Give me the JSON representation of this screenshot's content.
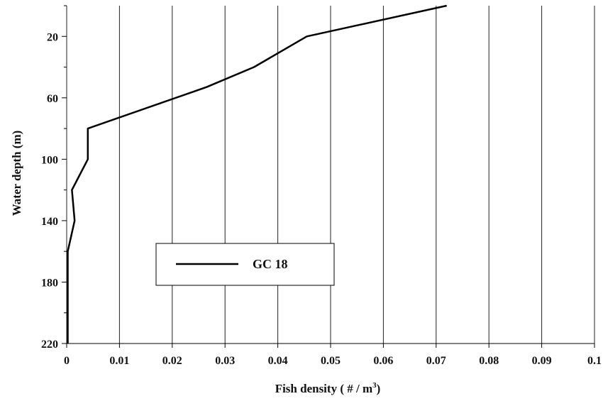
{
  "chart_data": {
    "type": "line",
    "title": "",
    "xlabel": {
      "main": "Fish density ( # / m",
      "sup": "3",
      "tail": ")"
    },
    "ylabel": "Water depth (m)",
    "xlim": [
      0,
      0.1
    ],
    "ylim": [
      220,
      0
    ],
    "y_inverted": true,
    "grid": "vertical",
    "x_ticks": [
      0,
      0.01,
      0.02,
      0.03,
      0.04,
      0.05,
      0.06,
      0.07,
      0.08,
      0.09,
      0.1
    ],
    "x_tick_labels": [
      "0",
      "0.01",
      "0.02",
      "0.03",
      "0.04",
      "0.05",
      "0.06",
      "0.07",
      "0.08",
      "0.09",
      "0.1"
    ],
    "y_major_ticks": [
      20,
      60,
      100,
      140,
      180,
      220
    ],
    "y_tick_labels": [
      "20",
      "60",
      "100",
      "140",
      "180",
      "220"
    ],
    "y_minor_ticks": [
      0,
      40,
      80,
      120,
      160,
      200
    ],
    "legend": {
      "position": "lower-left",
      "entries": [
        "GC 18"
      ]
    },
    "series": [
      {
        "name": "GC 18",
        "color": "#000000",
        "points": [
          {
            "x": 0.072,
            "y": 0
          },
          {
            "x": 0.0455,
            "y": 20
          },
          {
            "x": 0.0355,
            "y": 40
          },
          {
            "x": 0.0265,
            "y": 53
          },
          {
            "x": 0.004,
            "y": 80
          },
          {
            "x": 0.004,
            "y": 100
          },
          {
            "x": 0.001,
            "y": 120
          },
          {
            "x": 0.0015,
            "y": 140
          },
          {
            "x": 0.0002,
            "y": 160
          },
          {
            "x": 0.0002,
            "y": 180
          },
          {
            "x": 0.0002,
            "y": 200
          },
          {
            "x": 0.0002,
            "y": 220
          }
        ]
      }
    ]
  }
}
